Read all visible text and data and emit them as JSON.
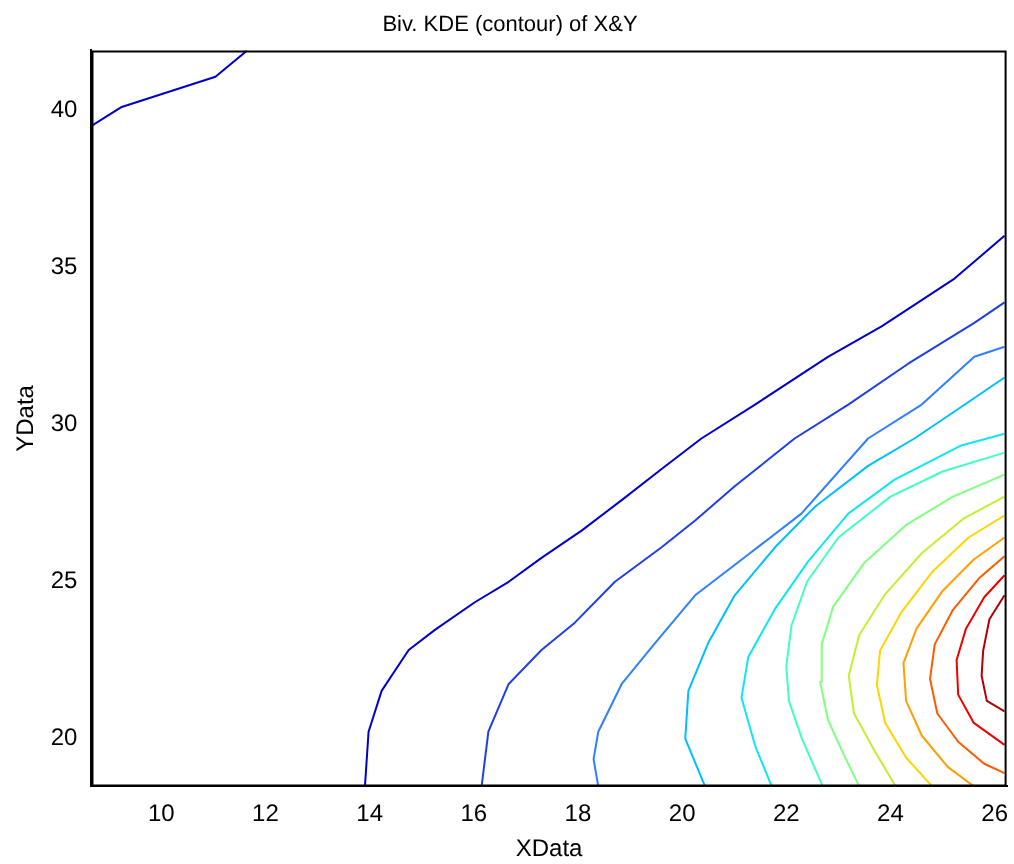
{
  "chart_data": {
    "type": "line",
    "title": "Biv. KDE (contour) of X&Y",
    "xlabel": "XData",
    "ylabel": "YData",
    "xlim": [
      8.66,
      26.23
    ],
    "ylim": [
      18.48,
      41.9
    ],
    "xticks": [
      10,
      12,
      14,
      16,
      18,
      20,
      22,
      24,
      26
    ],
    "yticks": [
      20,
      25,
      30,
      35,
      40
    ],
    "grid": false,
    "legend": false,
    "line_style": "solid",
    "series": [
      {
        "color": "#0000c8",
        "x": [
          8.66,
          9.24,
          11.04,
          11.65
        ],
        "values": [
          39.5,
          40.1,
          41.06,
          41.9
        ]
      },
      {
        "color": "#0000c8",
        "x": [
          13.91,
          13.98,
          14.23,
          14.75,
          15.26,
          16.02,
          16.67,
          17.3,
          18.07,
          18.84,
          19.6,
          20.37,
          21.4,
          22.8,
          23.83,
          25.23,
          26.19
        ],
        "values": [
          18.48,
          20.22,
          21.52,
          22.82,
          23.47,
          24.34,
          24.99,
          25.75,
          26.62,
          27.59,
          28.57,
          29.55,
          30.63,
          32.15,
          33.12,
          34.64,
          36.0
        ]
      },
      {
        "color": "#1f3fe6",
        "x": [
          16.15,
          16.28,
          16.67,
          17.3,
          17.94,
          18.71,
          19.6,
          20.25,
          21.01,
          22.16,
          23.19,
          24.34,
          25.61,
          26.19
        ],
        "values": [
          18.48,
          20.22,
          21.74,
          22.82,
          23.69,
          24.99,
          26.08,
          26.94,
          28.03,
          29.55,
          30.63,
          31.93,
          33.23,
          33.88
        ]
      },
      {
        "color": "#2f7fff",
        "x": [
          18.39,
          18.3,
          18.39,
          18.84,
          19.48,
          20.25,
          21.27,
          22.29,
          23.57,
          24.6,
          25.61,
          26.19
        ],
        "values": [
          18.48,
          19.35,
          20.22,
          21.74,
          23.04,
          24.56,
          25.86,
          27.16,
          29.55,
          30.63,
          32.15,
          32.47
        ]
      },
      {
        "color": "#00bfff",
        "x": [
          20.44,
          20.06,
          20.12,
          20.5,
          21.01,
          21.78,
          22.55,
          23.57,
          24.46,
          25.23,
          26.19
        ],
        "values": [
          18.48,
          20.0,
          21.52,
          23.04,
          24.56,
          26.08,
          27.38,
          28.68,
          29.55,
          30.41,
          31.49
        ]
      },
      {
        "color": "#10e6f0",
        "x": [
          21.72,
          21.4,
          21.14,
          21.27,
          21.78,
          22.42,
          23.19,
          24.08,
          25.36,
          26.19
        ],
        "values": [
          18.48,
          19.78,
          21.3,
          22.6,
          24.12,
          25.64,
          27.16,
          28.24,
          29.33,
          29.7
        ]
      },
      {
        "color": "#40ffbf",
        "x": [
          22.7,
          22.3,
          22.05,
          22.0,
          22.1,
          22.4,
          23.0,
          24.0,
          25.0,
          26.19
        ],
        "values": [
          18.48,
          20.0,
          21.2,
          22.3,
          23.6,
          25.0,
          26.4,
          27.7,
          28.5,
          29.1
        ]
      },
      {
        "color": "#80ff80",
        "x": [
          23.4,
          23.1,
          22.8,
          22.65,
          22.68,
          22.9,
          23.5,
          24.3,
          25.2,
          26.19
        ],
        "values": [
          18.48,
          19.5,
          20.6,
          21.8,
          23.0,
          24.2,
          25.6,
          26.8,
          27.7,
          28.4
        ]
      },
      {
        "color": "#c0f030",
        "x": [
          24.1,
          23.7,
          23.3,
          23.2,
          23.4,
          23.9,
          24.6,
          25.4,
          26.19
        ],
        "values": [
          18.48,
          19.6,
          20.8,
          22.0,
          23.3,
          24.6,
          25.9,
          27.0,
          27.7
        ]
      },
      {
        "color": "#ffd400",
        "x": [
          24.8,
          24.3,
          23.9,
          23.74,
          23.8,
          24.2,
          24.8,
          25.5,
          26.19
        ],
        "values": [
          18.48,
          19.4,
          20.5,
          21.7,
          22.8,
          24.0,
          25.3,
          26.4,
          27.1
        ]
      },
      {
        "color": "#ff9f00",
        "x": [
          25.6,
          25.1,
          24.6,
          24.3,
          24.25,
          24.5,
          25.0,
          25.6,
          26.19
        ],
        "values": [
          18.48,
          19.1,
          20.1,
          21.2,
          22.4,
          23.5,
          24.7,
          25.7,
          26.4
        ]
      },
      {
        "color": "#ff5a00",
        "x": [
          26.19,
          25.8,
          25.3,
          24.9,
          24.76,
          24.85,
          25.2,
          25.7,
          26.19
        ],
        "values": [
          18.9,
          19.2,
          19.9,
          20.8,
          21.9,
          23.0,
          24.1,
          25.1,
          25.8
        ]
      },
      {
        "color": "#ee0000",
        "x": [
          26.19,
          25.6,
          25.3,
          25.27,
          25.45,
          25.8,
          26.19
        ],
        "values": [
          19.8,
          20.5,
          21.4,
          22.5,
          23.5,
          24.5,
          25.2
        ]
      },
      {
        "color": "#b00000",
        "x": [
          26.19,
          25.85,
          25.75,
          25.78,
          25.9,
          26.19
        ],
        "values": [
          20.87,
          21.2,
          22.0,
          22.8,
          23.8,
          24.56
        ]
      }
    ]
  }
}
